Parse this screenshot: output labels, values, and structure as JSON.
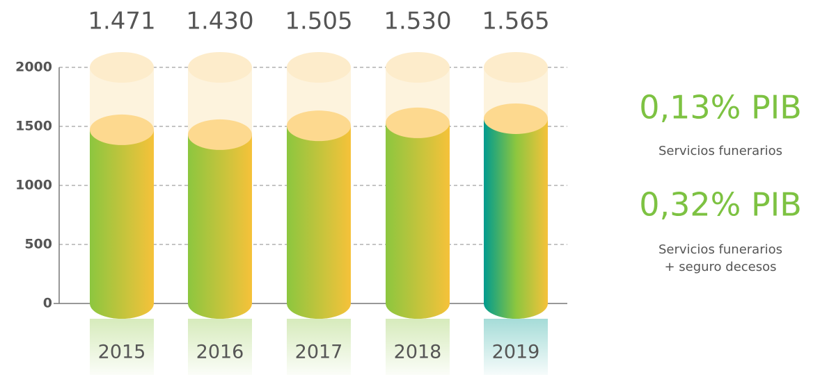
{
  "chart_data": {
    "type": "bar",
    "categories": [
      "2015",
      "2016",
      "2017",
      "2018",
      "2019"
    ],
    "values": [
      1471,
      1430,
      1505,
      1530,
      1565
    ],
    "value_labels": [
      "1.471",
      "1.430",
      "1.505",
      "1.530",
      "1.565"
    ],
    "bar_gradients": [
      [
        "#8cc63f",
        "#f6c23a"
      ],
      [
        "#8cc63f",
        "#f6c23a"
      ],
      [
        "#8cc63f",
        "#f6c23a"
      ],
      [
        "#8cc63f",
        "#f6c23a"
      ],
      [
        "#009b8f",
        "#8cc63f",
        "#f6c23a"
      ]
    ],
    "ylim": [
      0,
      2000
    ],
    "yticks": [
      0,
      500,
      1000,
      1500,
      2000
    ],
    "grid": true,
    "annotations": [
      {
        "text": "0,13% PIB",
        "note": [
          "Servicios funerarios"
        ]
      },
      {
        "text": "0,32% PIB",
        "note": [
          "Servicios funerarios",
          "+ seguro decesos"
        ]
      }
    ]
  }
}
